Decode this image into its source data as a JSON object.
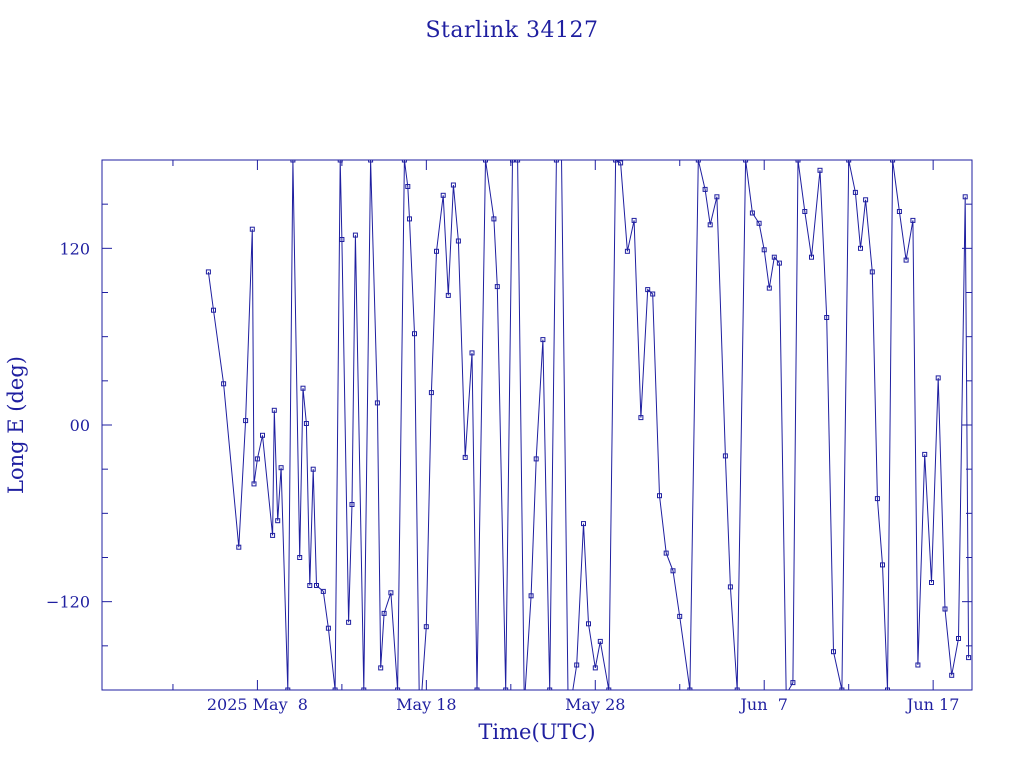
{
  "chart_data": {
    "type": "line",
    "title": "Starlink 34127",
    "xlabel": "Time(UTC)",
    "ylabel": "Long E (deg)",
    "x_tick_labels": [
      {
        "label": "2025 May  8",
        "day": 8
      },
      {
        "label": "May 18",
        "day": 18
      },
      {
        "label": "May 28",
        "day": 28
      },
      {
        "label": "Jun  7",
        "day": 38
      },
      {
        "label": "Jun 17",
        "day": 48
      }
    ],
    "x_minor_tick_days": [
      3,
      13,
      23,
      33,
      43
    ],
    "xlim": [
      -1.2,
      50.3
    ],
    "xlim_note": "days since 2025-05-00 (May 1 = 1; Jun 1 = 32)",
    "y_tick_labels": [
      {
        "label": "120",
        "value": 120
      },
      {
        "label": "00",
        "value": 0
      },
      {
        "label": "−120",
        "value": -120
      }
    ],
    "y_minor_ticks": [
      -150,
      -90,
      -60,
      -30,
      30,
      60,
      90,
      150
    ],
    "ylim": [
      -180,
      180
    ],
    "grid": false,
    "colors": {
      "series": "#1f1fa0",
      "text": "#1f1fa0"
    },
    "series": [
      {
        "name": "Long E",
        "points": [
          [
            5.1,
            104
          ],
          [
            5.4,
            78
          ],
          [
            6.0,
            28
          ],
          [
            6.9,
            -83
          ],
          [
            7.3,
            3
          ],
          [
            7.7,
            133
          ],
          [
            7.8,
            -40
          ],
          [
            8.0,
            -23
          ],
          [
            8.3,
            -7
          ],
          [
            8.9,
            -75
          ],
          [
            9.0,
            10
          ],
          [
            9.2,
            -65
          ],
          [
            9.4,
            -29
          ],
          [
            9.8,
            -180
          ],
          [
            10.1,
            180
          ],
          [
            10.5,
            -90
          ],
          [
            10.7,
            25
          ],
          [
            10.9,
            1
          ],
          [
            11.1,
            -109
          ],
          [
            11.3,
            -30
          ],
          [
            11.5,
            -109
          ],
          [
            11.9,
            -113
          ],
          [
            12.2,
            -138
          ],
          [
            12.6,
            -180
          ],
          [
            12.9,
            180
          ],
          [
            13.0,
            126
          ],
          [
            13.4,
            -134
          ],
          [
            13.6,
            -54
          ],
          [
            13.8,
            129
          ],
          [
            14.3,
            -180
          ],
          [
            14.7,
            180
          ],
          [
            15.1,
            15
          ],
          [
            15.3,
            -165
          ],
          [
            15.5,
            -128
          ],
          [
            15.9,
            -114
          ],
          [
            16.3,
            -180
          ],
          [
            16.7,
            180
          ],
          [
            16.9,
            162
          ],
          [
            17.0,
            140
          ],
          [
            17.3,
            62
          ],
          [
            17.6,
            -203
          ],
          [
            18.0,
            -137
          ],
          [
            18.3,
            22
          ],
          [
            18.6,
            118
          ],
          [
            19.0,
            156
          ],
          [
            19.3,
            88
          ],
          [
            19.6,
            163
          ],
          [
            19.9,
            125
          ],
          [
            20.3,
            -22
          ],
          [
            20.7,
            49
          ],
          [
            21.0,
            -180
          ],
          [
            21.5,
            180
          ],
          [
            22.0,
            140
          ],
          [
            22.2,
            94
          ],
          [
            22.7,
            -180
          ],
          [
            23.1,
            180
          ],
          [
            23.4,
            180
          ],
          [
            23.8,
            -190
          ],
          [
            24.2,
            -116
          ],
          [
            24.5,
            -23
          ],
          [
            24.9,
            58
          ],
          [
            25.3,
            -180
          ],
          [
            25.7,
            180
          ],
          [
            26.0,
            182
          ],
          [
            26.4,
            -200
          ],
          [
            26.9,
            -163
          ],
          [
            27.3,
            -67
          ],
          [
            27.6,
            -135
          ],
          [
            28.0,
            -165
          ],
          [
            28.3,
            -147
          ],
          [
            28.8,
            -180
          ],
          [
            29.2,
            180
          ],
          [
            29.5,
            178
          ],
          [
            29.9,
            118
          ],
          [
            30.3,
            139
          ],
          [
            30.7,
            5
          ],
          [
            31.1,
            92
          ],
          [
            31.4,
            89
          ],
          [
            31.8,
            -48
          ],
          [
            32.2,
            -87
          ],
          [
            32.6,
            -99
          ],
          [
            33.0,
            -130
          ],
          [
            33.6,
            -180
          ],
          [
            34.1,
            180
          ],
          [
            34.5,
            160
          ],
          [
            34.8,
            136
          ],
          [
            35.2,
            155
          ],
          [
            35.7,
            -21
          ],
          [
            36.0,
            -110
          ],
          [
            36.4,
            -180
          ],
          [
            36.9,
            180
          ],
          [
            37.3,
            144
          ],
          [
            37.7,
            137
          ],
          [
            38.0,
            119
          ],
          [
            38.3,
            93
          ],
          [
            38.6,
            114
          ],
          [
            38.9,
            110
          ],
          [
            39.3,
            -183
          ],
          [
            39.7,
            -175
          ],
          [
            40.0,
            180
          ],
          [
            40.4,
            145
          ],
          [
            40.8,
            114
          ],
          [
            41.3,
            173
          ],
          [
            41.7,
            73
          ],
          [
            42.1,
            -154
          ],
          [
            42.6,
            -180
          ],
          [
            43.0,
            180
          ],
          [
            43.4,
            158
          ],
          [
            43.7,
            120
          ],
          [
            44.0,
            153
          ],
          [
            44.4,
            104
          ],
          [
            44.7,
            -50
          ],
          [
            45.0,
            -95
          ],
          [
            45.3,
            -180
          ],
          [
            45.6,
            180
          ],
          [
            46.0,
            145
          ],
          [
            46.4,
            112
          ],
          [
            46.8,
            139
          ],
          [
            47.1,
            -163
          ],
          [
            47.5,
            -20
          ],
          [
            47.9,
            -107
          ],
          [
            48.3,
            32
          ],
          [
            48.7,
            -125
          ],
          [
            49.1,
            -170
          ],
          [
            49.5,
            -145
          ],
          [
            49.9,
            155
          ],
          [
            50.1,
            -158
          ]
        ]
      }
    ]
  }
}
